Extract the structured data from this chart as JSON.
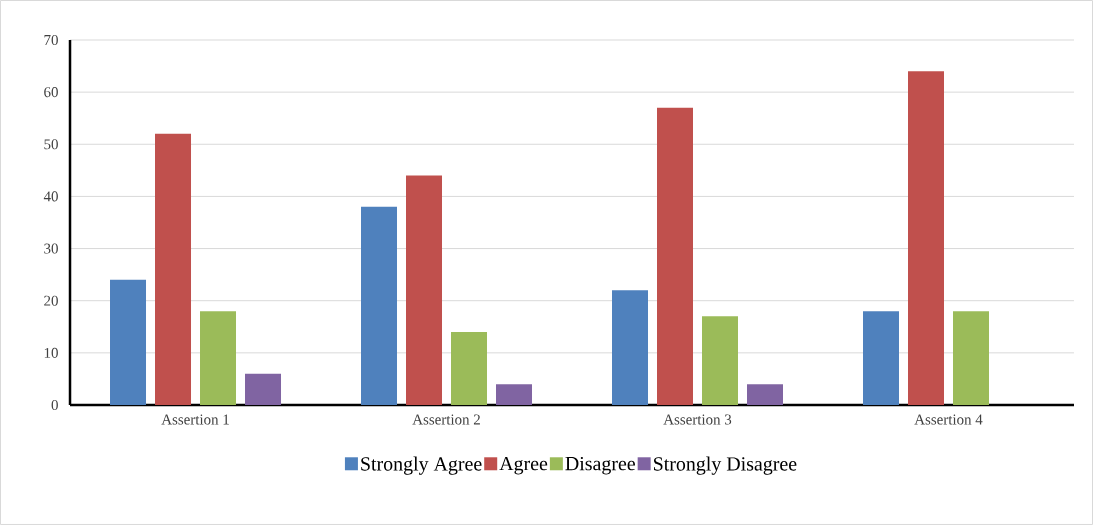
{
  "chart_data": {
    "type": "bar",
    "categories": [
      "Assertion 1",
      "Assertion 2",
      "Assertion 3",
      "Assertion 4"
    ],
    "series": [
      {
        "name": "Strongly Agree",
        "color": "#4f81bd",
        "values": [
          24,
          38,
          22,
          18
        ]
      },
      {
        "name": "Agree",
        "color": "#c0504d",
        "values": [
          52,
          44,
          57,
          64
        ]
      },
      {
        "name": "Disagree",
        "color": "#9bbb59",
        "values": [
          18,
          14,
          17,
          18
        ]
      },
      {
        "name": "Strongly Disagree",
        "color": "#8064a2",
        "values": [
          6,
          4,
          4,
          0
        ]
      }
    ],
    "ylim": [
      0,
      70
    ],
    "yticks": [
      0,
      10,
      20,
      30,
      40,
      50,
      60,
      70
    ],
    "grid": "y",
    "legend": "bottom"
  }
}
